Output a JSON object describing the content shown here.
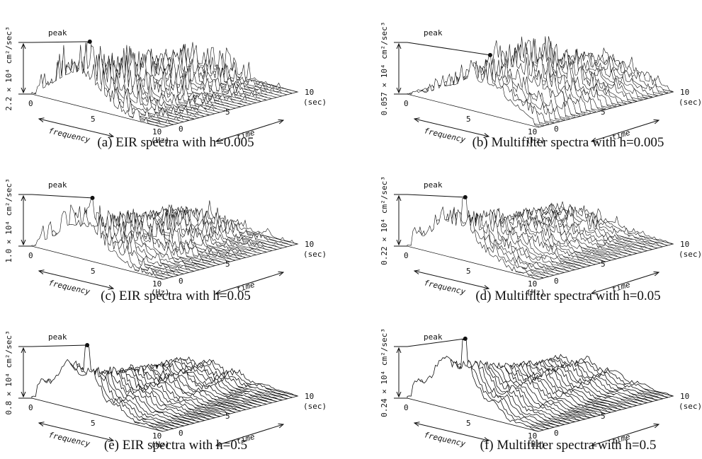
{
  "panels": [
    {
      "caption": "(a) EIR spectra with h=0.005",
      "y_label": "2.2 × 10⁴ cm²/sec³",
      "peak": "peak",
      "freq_label": "frequency",
      "time_label": "time",
      "freq_ticks": [
        "0",
        "5",
        "10"
      ],
      "freq_unit": "(Hz)",
      "time_ticks": [
        "0",
        "5",
        "10"
      ],
      "time_unit": "(sec)"
    },
    {
      "caption": "(b) Multifilter spectra with h=0.005",
      "y_label": "0.057 × 10⁴ cm²/sec³",
      "peak": "peak",
      "freq_label": "frequency",
      "time_label": "time",
      "freq_ticks": [
        "0",
        "5",
        "10"
      ],
      "freq_unit": "(Hz)",
      "time_ticks": [
        "0",
        "5",
        "10"
      ],
      "time_unit": "(sec)"
    },
    {
      "caption": "(c) EIR spectra with h=0.05",
      "y_label": "1.0 × 10⁴ cm²/sec³",
      "peak": "peak",
      "freq_label": "frequency",
      "time_label": "time",
      "freq_ticks": [
        "0",
        "5",
        "10"
      ],
      "freq_unit": "(Hz)",
      "time_ticks": [
        "0",
        "5",
        "10"
      ],
      "time_unit": "(sec)"
    },
    {
      "caption": "(d) Multifilter spectra with h=0.05",
      "y_label": "0.22 × 10⁴ cm²/sec³",
      "peak": "peak",
      "freq_label": "frequency",
      "time_label": "time",
      "freq_ticks": [
        "0",
        "5",
        "10"
      ],
      "freq_unit": "(Hz)",
      "time_ticks": [
        "0",
        "5",
        "10"
      ],
      "time_unit": "(sec)"
    },
    {
      "caption": "(e) EIR spectra with h=0.5",
      "y_label": "0.8 × 10⁴ cm²/sec³",
      "peak": "peak",
      "freq_label": "frequency",
      "time_label": "time",
      "freq_ticks": [
        "0",
        "5",
        "10"
      ],
      "freq_unit": "(Hz)",
      "time_ticks": [
        "0",
        "5",
        "10"
      ],
      "time_unit": "(sec)"
    },
    {
      "caption": "(f) Multifilter spectra with h=0.5",
      "y_label": "0.24 × 10⁴ cm²/sec³",
      "peak": "peak",
      "freq_label": "frequency",
      "time_label": "time",
      "freq_ticks": [
        "0",
        "5",
        "10"
      ],
      "freq_unit": "(Hz)",
      "time_ticks": [
        "0",
        "5",
        "10"
      ],
      "time_unit": "(sec)"
    }
  ]
}
